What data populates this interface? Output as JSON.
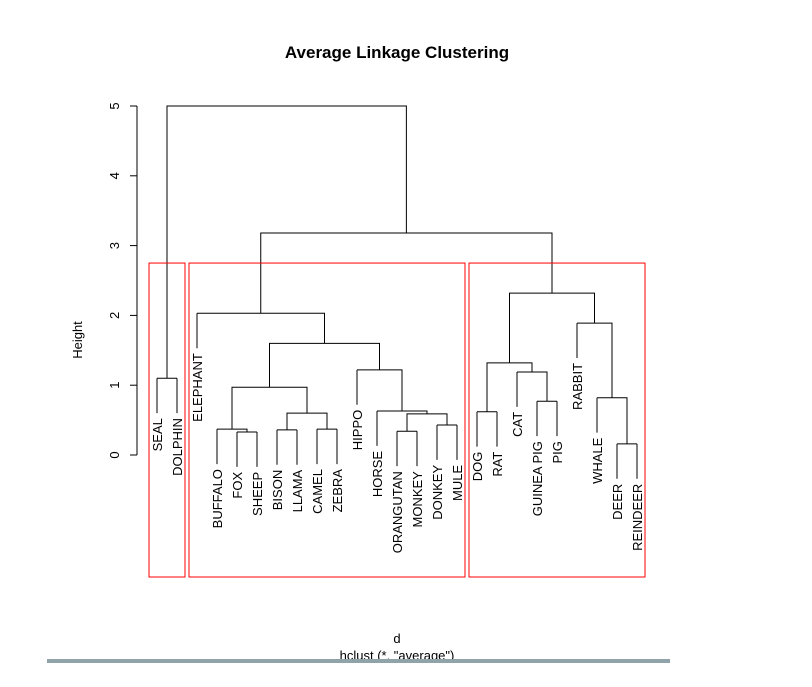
{
  "chart_data": {
    "type": "dendrogram",
    "title": "Average Linkage Clustering",
    "y_label": "Height",
    "x_label": "d",
    "subtitle": "hclust (*, \"average\")",
    "ylim": [
      0,
      5
    ],
    "yticks": [
      0,
      1,
      2,
      3,
      4,
      5
    ],
    "leaves": [
      "SEAL",
      "DOLPHIN",
      "ELEPHANT",
      "BUFFALO",
      "FOX",
      "SHEEP",
      "BISON",
      "LLAMA",
      "CAMEL",
      "ZEBRA",
      "HIPPO",
      "HORSE",
      "ORANGUTAN",
      "MONKEY",
      "DONKEY",
      "MULE",
      "DOG",
      "RAT",
      "CAT",
      "GUINEA PIG",
      "PIG",
      "RABBIT",
      "WHALE",
      "DEER",
      "REINDEER"
    ],
    "merges": [
      {
        "children": [
          0,
          1
        ],
        "height": 1.1
      },
      {
        "children": [
          4,
          5
        ],
        "height": 0.33
      },
      {
        "children": [
          3,
          26
        ],
        "height": 0.37
      },
      {
        "children": [
          6,
          7
        ],
        "height": 0.36
      },
      {
        "children": [
          8,
          9
        ],
        "height": 0.37
      },
      {
        "children": [
          28,
          29
        ],
        "height": 0.6
      },
      {
        "children": [
          27,
          30
        ],
        "height": 0.97
      },
      {
        "children": [
          12,
          13
        ],
        "height": 0.34
      },
      {
        "children": [
          14,
          15
        ],
        "height": 0.43
      },
      {
        "children": [
          32,
          33
        ],
        "height": 0.59
      },
      {
        "children": [
          11,
          34
        ],
        "height": 0.63
      },
      {
        "children": [
          10,
          35
        ],
        "height": 1.22
      },
      {
        "children": [
          31,
          36
        ],
        "height": 1.6
      },
      {
        "children": [
          2,
          37
        ],
        "height": 2.03
      },
      {
        "children": [
          16,
          17
        ],
        "height": 0.62
      },
      {
        "children": [
          19,
          20
        ],
        "height": 0.77
      },
      {
        "children": [
          18,
          40
        ],
        "height": 1.19
      },
      {
        "children": [
          39,
          41
        ],
        "height": 1.32
      },
      {
        "children": [
          23,
          24
        ],
        "height": 0.16
      },
      {
        "children": [
          22,
          43
        ],
        "height": 0.82
      },
      {
        "children": [
          21,
          44
        ],
        "height": 1.89
      },
      {
        "children": [
          42,
          45
        ],
        "height": 2.32
      },
      {
        "children": [
          38,
          46
        ],
        "height": 3.18
      },
      {
        "children": [
          25,
          47
        ],
        "height": 5
      }
    ],
    "rect_k": 3,
    "rect_color": "#ff0000",
    "line_color": "#000000"
  }
}
